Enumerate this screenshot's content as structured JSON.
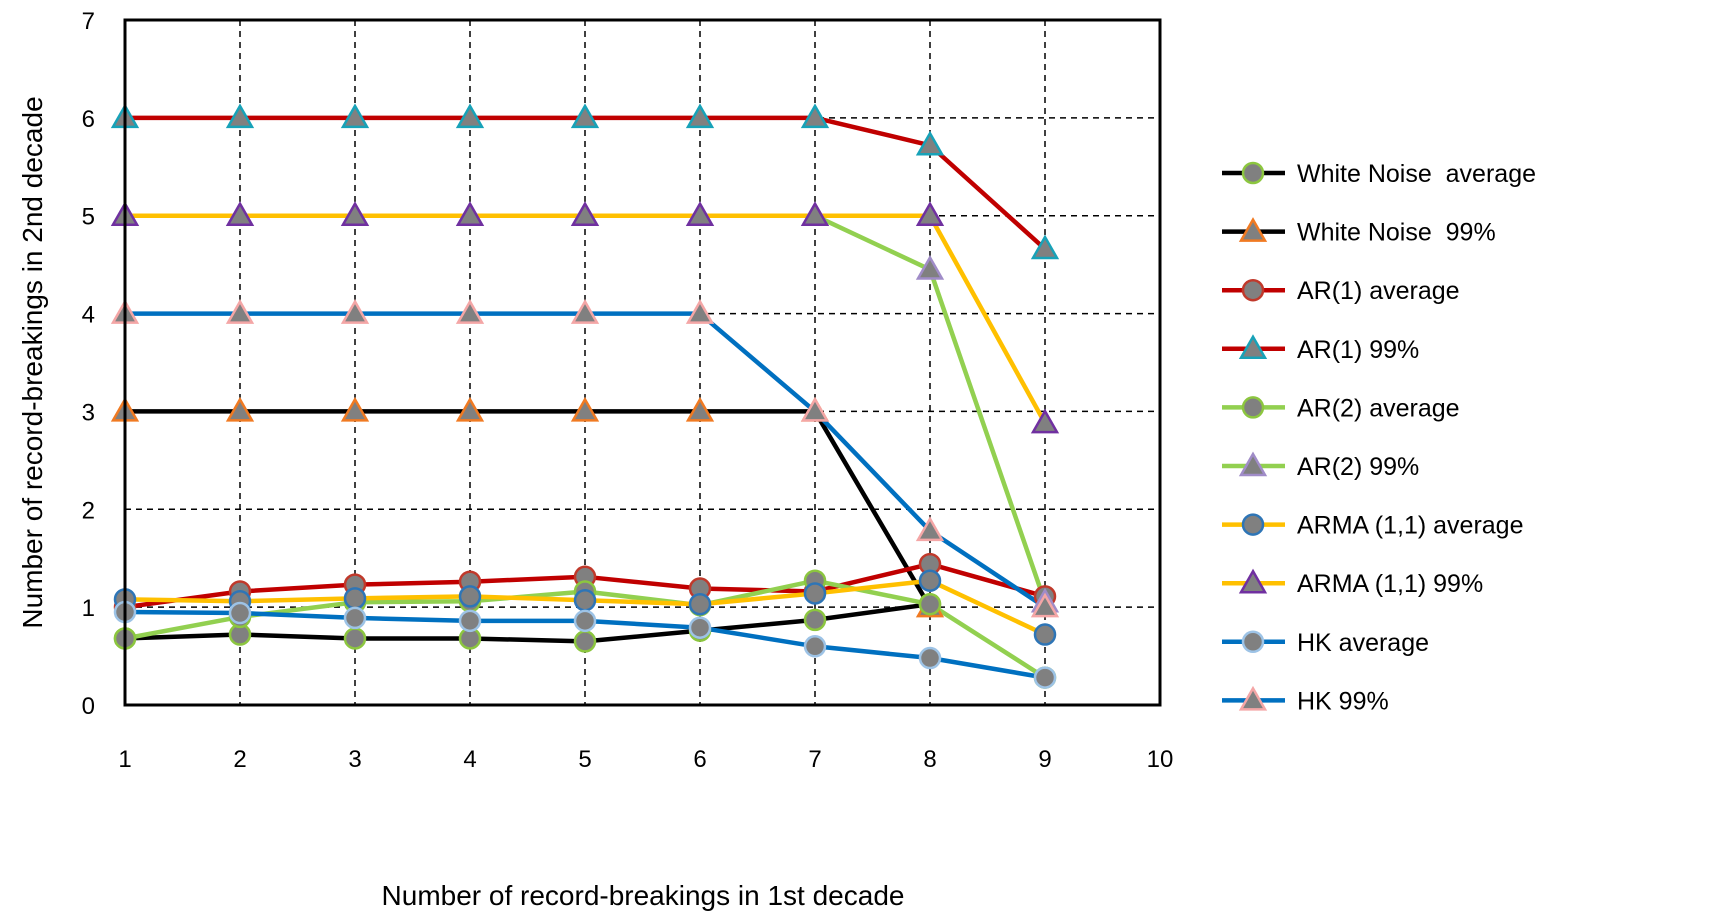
{
  "chart_data": {
    "type": "line",
    "title": "",
    "xlabel": "Number of record-breakings in 1st decade",
    "ylabel": "Number of record-breakings in 2nd decade",
    "xlim": [
      1,
      10
    ],
    "ylim": [
      0,
      7
    ],
    "x_ticks": [
      1,
      2,
      3,
      4,
      5,
      6,
      7,
      8,
      9,
      10
    ],
    "y_ticks": [
      0,
      1,
      2,
      3,
      4,
      5,
      6,
      7
    ],
    "grid": true,
    "legend_position": "right",
    "series": [
      {
        "name": "White Noise  average",
        "color": "#000000",
        "marker": "circle",
        "marker_fill": "#808080",
        "marker_edge": "#8cc63f",
        "x": [
          1,
          2,
          3,
          4,
          5,
          6,
          7,
          8
        ],
        "y": [
          0.68,
          0.72,
          0.68,
          0.68,
          0.65,
          0.76,
          0.87,
          1.03
        ]
      },
      {
        "name": "White Noise  99%",
        "color": "#000000",
        "marker": "triangle",
        "marker_fill": "#808080",
        "marker_edge": "#f07a22",
        "x": [
          1,
          2,
          3,
          4,
          5,
          6,
          7,
          8
        ],
        "y": [
          3,
          3,
          3,
          3,
          3,
          3,
          3,
          1
        ]
      },
      {
        "name": "AR(1) average",
        "color": "#c00000",
        "marker": "circle",
        "marker_fill": "#808080",
        "marker_edge": "#c0392b",
        "x": [
          1,
          2,
          3,
          4,
          5,
          6,
          7,
          8,
          9
        ],
        "y": [
          1.0,
          1.16,
          1.23,
          1.26,
          1.31,
          1.19,
          1.16,
          1.44,
          1.11
        ]
      },
      {
        "name": "AR(1) 99%",
        "color": "#c00000",
        "marker": "triangle",
        "marker_fill": "#808080",
        "marker_edge": "#17a2b8",
        "x": [
          1,
          2,
          3,
          4,
          5,
          6,
          7,
          8,
          9
        ],
        "y": [
          6,
          6,
          6,
          6,
          6,
          6,
          6,
          5.72,
          4.66
        ]
      },
      {
        "name": "AR(2) average",
        "color": "#92d050",
        "marker": "circle",
        "marker_fill": "#808080",
        "marker_edge": "#8cc63f",
        "x": [
          1,
          2,
          3,
          4,
          5,
          6,
          7,
          8,
          9
        ],
        "y": [
          0.68,
          0.9,
          1.05,
          1.06,
          1.16,
          1.02,
          1.27,
          1.03,
          0.28
        ]
      },
      {
        "name": "AR(2) 99%",
        "color": "#92d050",
        "marker": "triangle",
        "marker_fill": "#808080",
        "marker_edge": "#a08cc8",
        "x": [
          1,
          2,
          3,
          4,
          5,
          6,
          7,
          8,
          9
        ],
        "y": [
          5,
          5,
          5,
          5,
          5,
          5,
          5,
          4.45,
          1.05
        ]
      },
      {
        "name": "ARMA (1,1) average",
        "color": "#ffc000",
        "marker": "circle",
        "marker_fill": "#808080",
        "marker_edge": "#2e75b6",
        "x": [
          1,
          2,
          3,
          4,
          5,
          6,
          7,
          8,
          9
        ],
        "y": [
          1.08,
          1.06,
          1.09,
          1.11,
          1.07,
          1.03,
          1.14,
          1.27,
          0.72
        ]
      },
      {
        "name": "ARMA (1,1) 99%",
        "color": "#ffc000",
        "marker": "triangle",
        "marker_fill": "#808080",
        "marker_edge": "#7030a0",
        "x": [
          1,
          2,
          3,
          4,
          5,
          6,
          7,
          8,
          9
        ],
        "y": [
          5,
          5,
          5,
          5,
          5,
          5,
          5,
          5,
          2.88
        ]
      },
      {
        "name": "HK average",
        "color": "#0070c0",
        "marker": "circle",
        "marker_fill": "#808080",
        "marker_edge": "#9dc3e6",
        "x": [
          1,
          2,
          3,
          4,
          5,
          6,
          7,
          8,
          9
        ],
        "y": [
          0.95,
          0.94,
          0.89,
          0.86,
          0.86,
          0.79,
          0.6,
          0.48,
          0.28
        ]
      },
      {
        "name": "HK 99%",
        "color": "#0070c0",
        "marker": "triangle",
        "marker_fill": "#808080",
        "marker_edge": "#f4a6a6",
        "x": [
          1,
          2,
          3,
          4,
          5,
          6,
          7,
          8,
          9
        ],
        "y": [
          4,
          4,
          4,
          4,
          4,
          4,
          3,
          1.78,
          1
        ]
      }
    ]
  }
}
